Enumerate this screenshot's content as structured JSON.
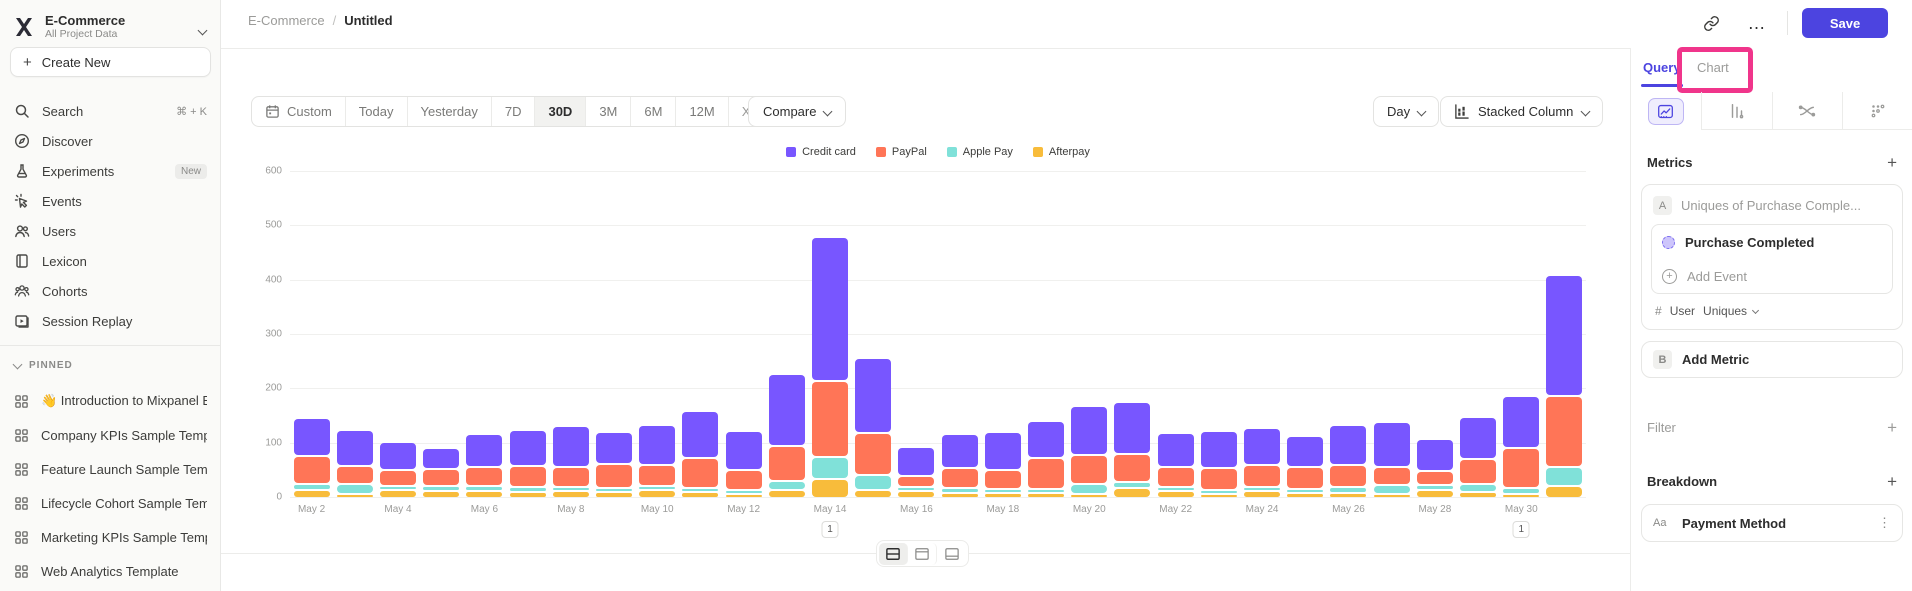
{
  "colors": {
    "accent": "#4C44E0",
    "annotation_pink": "#F0358B"
  },
  "window": {
    "save_label": "Save"
  },
  "breadcrumb": {
    "parent": "E-Commerce",
    "separator": "/",
    "current": "Untitled"
  },
  "sidebar": {
    "project_name": "E-Commerce",
    "project_subtitle": "All Project Data",
    "create_new_label": "Create New",
    "items": [
      {
        "label": "Search",
        "icon": "search",
        "shortcut": "⌘ + K"
      },
      {
        "label": "Discover",
        "icon": "discover"
      },
      {
        "label": "Experiments",
        "icon": "experiments",
        "badge": "New"
      },
      {
        "label": "Events",
        "icon": "events"
      },
      {
        "label": "Users",
        "icon": "users"
      },
      {
        "label": "Lexicon",
        "icon": "lexicon"
      },
      {
        "label": "Cohorts",
        "icon": "cohorts"
      },
      {
        "label": "Session Replay",
        "icon": "session-replay"
      }
    ],
    "pinned_header": "PINNED",
    "pinned_items": [
      "👋 Introduction to Mixpanel Bo",
      "Company KPIs Sample Templat",
      "Feature Launch Sample Templa",
      "Lifecycle Cohort Sample Temp",
      "Marketing KPIs Sample Templat",
      "Web Analytics Template"
    ]
  },
  "toolbar": {
    "date_ranges": [
      "Custom",
      "Today",
      "Yesterday",
      "7D",
      "30D",
      "3M",
      "6M",
      "12M",
      "XTD"
    ],
    "active_range": "30D",
    "compare_label": "Compare",
    "granularity_label": "Day",
    "chart_type_label": "Stacked Column"
  },
  "view_toggles": [
    "split-view",
    "top-panel-view",
    "bottom-panel-view"
  ],
  "right_panel": {
    "tabs": {
      "query": "Query",
      "chart": "Chart"
    },
    "icon_tabs": [
      "insights",
      "funnels",
      "flows",
      "retention"
    ],
    "metrics_header": "Metrics",
    "metric_letter": "A",
    "metric_placeholder": "Uniques of Purchase Comple...",
    "event_name": "Purchase Completed",
    "add_event_label": "Add Event",
    "aggregation": {
      "hash": "#",
      "entity": "User",
      "type": "Uniques"
    },
    "add_metric_letter": "B",
    "add_metric_label": "Add Metric",
    "filter_header": "Filter",
    "breakdown_header": "Breakdown",
    "breakdown_item": {
      "badge": "Aa",
      "label": "Payment Method"
    }
  },
  "chart_data": {
    "type": "bar",
    "stacked": true,
    "title": "",
    "xlabel": "",
    "ylabel": "",
    "ylim": [
      0,
      600
    ],
    "yticks": [
      0,
      100,
      200,
      300,
      400,
      500,
      600
    ],
    "grid": "horizontal",
    "legend_position": "top-center",
    "legend_order_top_to_bottom": [
      "Credit card",
      "PayPal",
      "Apple Pay",
      "Afterpay"
    ],
    "x": [
      "May 2",
      "May 3",
      "May 4",
      "May 5",
      "May 6",
      "May 7",
      "May 8",
      "May 9",
      "May 10",
      "May 11",
      "May 12",
      "May 13",
      "May 14",
      "May 15",
      "May 16",
      "May 17",
      "May 18",
      "May 19",
      "May 20",
      "May 21",
      "May 22",
      "May 23",
      "May 24",
      "May 25",
      "May 26",
      "May 27",
      "May 28",
      "May 29",
      "May 30",
      "May 31"
    ],
    "x_label_every": 2,
    "series_bottom_to_top": [
      {
        "name": "Afterpay",
        "color": "#F8BC3B",
        "values": [
          15,
          8,
          15,
          13,
          12,
          11,
          12,
          11,
          14,
          11,
          6,
          15,
          35,
          14,
          12,
          10,
          9,
          9,
          8,
          18,
          12,
          7,
          12,
          9,
          10,
          3,
          14,
          11,
          8,
          22
        ]
      },
      {
        "name": "Apple Pay",
        "color": "#80E1D9",
        "values": [
          11,
          17,
          6,
          9,
          10,
          9,
          8,
          8,
          6,
          8,
          7,
          17,
          40,
          29,
          9,
          8,
          8,
          7,
          17,
          12,
          8,
          6,
          8,
          7,
          10,
          17,
          10,
          14,
          10,
          35
        ]
      },
      {
        "name": "PayPal",
        "color": "#FF7557",
        "values": [
          52,
          34,
          30,
          32,
          35,
          39,
          38,
          43,
          40,
          55,
          37,
          64,
          140,
          76,
          19,
          38,
          34,
          57,
          54,
          51,
          37,
          40,
          41,
          41,
          41,
          33,
          25,
          47,
          74,
          131
        ]
      },
      {
        "name": "Credit card",
        "color": "#7856FF",
        "values": [
          70,
          67,
          51,
          39,
          60,
          66,
          75,
          59,
          73,
          86,
          72,
          133,
          266,
          138,
          54,
          62,
          70,
          68,
          90,
          96,
          62,
          68,
          68,
          56,
          74,
          82,
          59,
          78,
          96,
          222
        ]
      }
    ],
    "annotations": [
      {
        "label": "1",
        "x": "May 14"
      },
      {
        "label": "1",
        "x": "May 30"
      }
    ]
  }
}
